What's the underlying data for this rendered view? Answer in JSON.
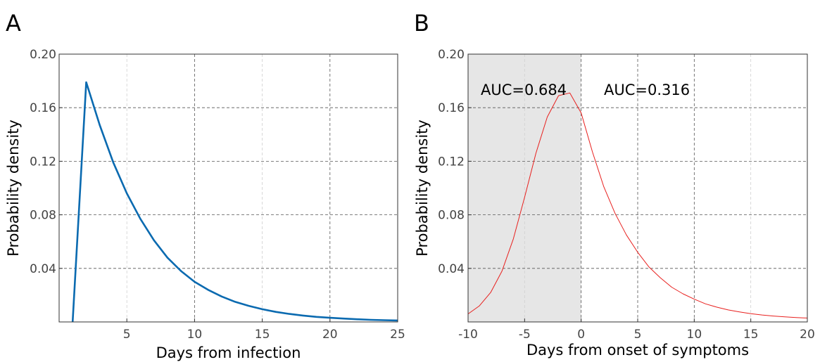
{
  "chart_data": [
    {
      "panel": "A",
      "type": "line",
      "title": "",
      "xlabel": "Days from infection",
      "ylabel": "Probability density",
      "xlim": [
        0,
        25
      ],
      "ylim": [
        0,
        0.2
      ],
      "xticks": [
        5,
        10,
        15,
        20,
        25
      ],
      "xtick_labels": [
        "5",
        "10",
        "15",
        "20",
        "25"
      ],
      "yticks": [
        0.04,
        0.08,
        0.12,
        0.16,
        0.2
      ],
      "ytick_labels": [
        "0.04",
        "0.08",
        "0.12",
        "0.16",
        "0.20"
      ],
      "grid": true,
      "color": "#0a6ab0",
      "series": [
        {
          "x": [
            1,
            2,
            3,
            4,
            5,
            6,
            7,
            8,
            9,
            10,
            11,
            12,
            13,
            14,
            15,
            16,
            17,
            18,
            19,
            20,
            21,
            22,
            23,
            24,
            25
          ],
          "values": [
            0.0,
            0.179,
            0.147,
            0.119,
            0.096,
            0.077,
            0.061,
            0.048,
            0.038,
            0.03,
            0.024,
            0.019,
            0.015,
            0.012,
            0.0095,
            0.0075,
            0.006,
            0.0048,
            0.0038,
            0.0031,
            0.0025,
            0.002,
            0.0016,
            0.0013,
            0.0011
          ]
        }
      ]
    },
    {
      "panel": "B",
      "type": "line",
      "title": "",
      "xlabel": "Days from onset of symptoms",
      "ylabel": "Probability density",
      "xlim": [
        -10,
        20
      ],
      "ylim": [
        0,
        0.2
      ],
      "xticks": [
        -10,
        -5,
        0,
        5,
        10,
        15,
        20
      ],
      "xtick_labels": [
        "-10",
        "-5",
        "0",
        "5",
        "10",
        "15",
        "20"
      ],
      "yticks": [
        0.04,
        0.08,
        0.12,
        0.16,
        0.2
      ],
      "ytick_labels": [
        "0.04",
        "0.08",
        "0.12",
        "0.16",
        "0.20"
      ],
      "grid": true,
      "color": "#e8201e",
      "shade_x": [
        -10,
        0
      ],
      "shade_color": "#e6e6e6",
      "annotations": [
        "AUC=0.684",
        "AUC=0.316"
      ],
      "series": [
        {
          "x": [
            -10,
            -9,
            -8,
            -7,
            -6,
            -5,
            -4,
            -3,
            -2,
            -1,
            0,
            1,
            2,
            3,
            4,
            5,
            6,
            7,
            8,
            9,
            10,
            11,
            12,
            13,
            14,
            15,
            16,
            17,
            18,
            19,
            20
          ],
          "values": [
            0.006,
            0.012,
            0.022,
            0.038,
            0.062,
            0.093,
            0.126,
            0.153,
            0.169,
            0.171,
            0.156,
            0.127,
            0.101,
            0.081,
            0.065,
            0.052,
            0.041,
            0.033,
            0.026,
            0.021,
            0.017,
            0.0135,
            0.011,
            0.009,
            0.0075,
            0.0062,
            0.0052,
            0.0044,
            0.0038,
            0.0033,
            0.0029
          ]
        }
      ]
    }
  ]
}
